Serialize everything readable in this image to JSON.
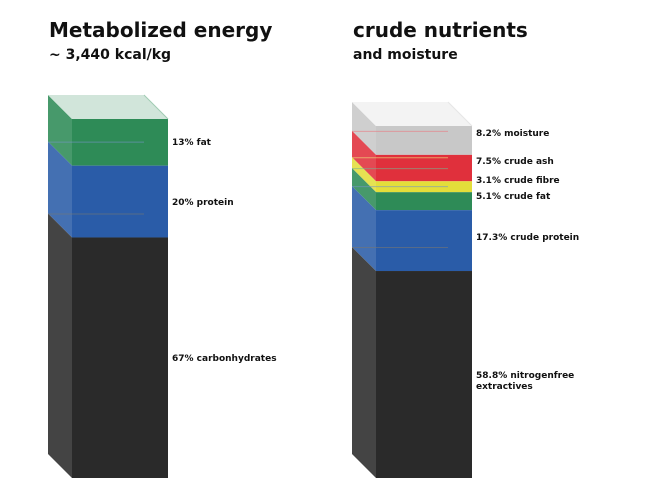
{
  "chart_data": [
    {
      "type": "stacked-column-3d",
      "title": "Metabolized energy",
      "subtitle": "~ 3,440 kcal/kg",
      "segments": [
        {
          "label": "13% fat",
          "value": 13,
          "color": "#2e8b57"
        },
        {
          "label": "20% protein",
          "value": 20,
          "color": "#2a5ca8"
        },
        {
          "label": "67% carbonhydrates",
          "value": 67,
          "color": "#2a2a2a"
        }
      ]
    },
    {
      "type": "stacked-column-3d",
      "title": "crude nutrients",
      "subtitle": "and moisture",
      "segments": [
        {
          "label": "8.2% moisture",
          "value": 8.2,
          "color": "#c8c8c8"
        },
        {
          "label": "7.5% crude ash",
          "value": 7.5,
          "color": "#e0303c"
        },
        {
          "label": "3.1% crude fibre",
          "value": 3.1,
          "color": "#e3de3a"
        },
        {
          "label": "5.1% crude fat",
          "value": 5.1,
          "color": "#2e8b57"
        },
        {
          "label": "17.3% crude protein",
          "value": 17.3,
          "color": "#2a5ca8"
        },
        {
          "label": "58.8% nitrogenfree extractives",
          "value": 58.8,
          "color": "#2a2a2a"
        }
      ]
    }
  ]
}
